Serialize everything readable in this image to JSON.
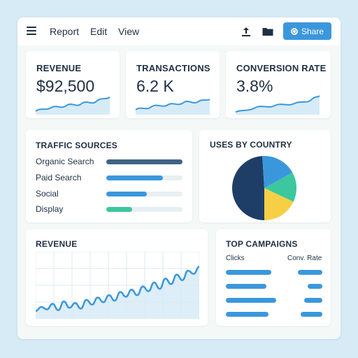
{
  "toolbar": {
    "menu": [
      "Report",
      "Edit",
      "View"
    ],
    "upload_icon": "upload-icon",
    "folder_icon": "folder-icon",
    "share_label": "Share",
    "accent": "#3b97dc"
  },
  "kpis": [
    {
      "label": "REVENUE",
      "value": "$92,500"
    },
    {
      "label": "TRANSACTIONS",
      "value": "6.2 K"
    },
    {
      "label": "CONVERSION RATE",
      "value": "3.8%"
    }
  ],
  "traffic": {
    "title": "TRAFFIC SOURCES",
    "items": [
      {
        "label": "Organic Search",
        "value": 1.0,
        "color": "#3f6384"
      },
      {
        "label": "Paid Search",
        "value": 0.74,
        "color": "#3b97dc"
      },
      {
        "label": "Social",
        "value": 0.53,
        "color": "#3b97dc"
      },
      {
        "label": "Display",
        "value": 0.34,
        "color": "#3cc79e"
      }
    ]
  },
  "country": {
    "title": "USES BY COUNTRY",
    "chart_data": {
      "type": "pie",
      "values": [
        49,
        18,
        15,
        18
      ],
      "colors": [
        "#1e3e68",
        "#3b97dc",
        "#3cc79e",
        "#f7cf45"
      ]
    }
  },
  "revenue_chart": {
    "title": "REVENUE",
    "chart_data": {
      "type": "area",
      "x": [
        1,
        2,
        3,
        4,
        5,
        6,
        7,
        8,
        9,
        10,
        11,
        12,
        13,
        14,
        15,
        16,
        17,
        18,
        19,
        20,
        21,
        22,
        23,
        24,
        25,
        26,
        27,
        28,
        29,
        30
      ],
      "values": [
        10,
        15,
        12,
        19,
        11,
        22,
        14,
        20,
        13,
        24,
        18,
        27,
        21,
        30,
        23,
        34,
        28,
        37,
        30,
        41,
        35,
        46,
        38,
        51,
        44,
        56,
        49,
        61,
        57,
        66
      ],
      "ylim": [
        0,
        85
      ],
      "grid": true,
      "color": "#3b97dc",
      "fill": "#d7ebf7"
    }
  },
  "campaigns": {
    "title": "TOP CAMPAIGNS",
    "col_clicks": "Clicks",
    "col_rate": "Conv. Rate",
    "rows": [
      {
        "clicks": 0.65,
        "rate": 0.7
      },
      {
        "clicks": 0.58,
        "rate": 0.43
      },
      {
        "clicks": 0.72,
        "rate": 0.52
      },
      {
        "clicks": 0.61,
        "rate": 0.62
      }
    ]
  }
}
